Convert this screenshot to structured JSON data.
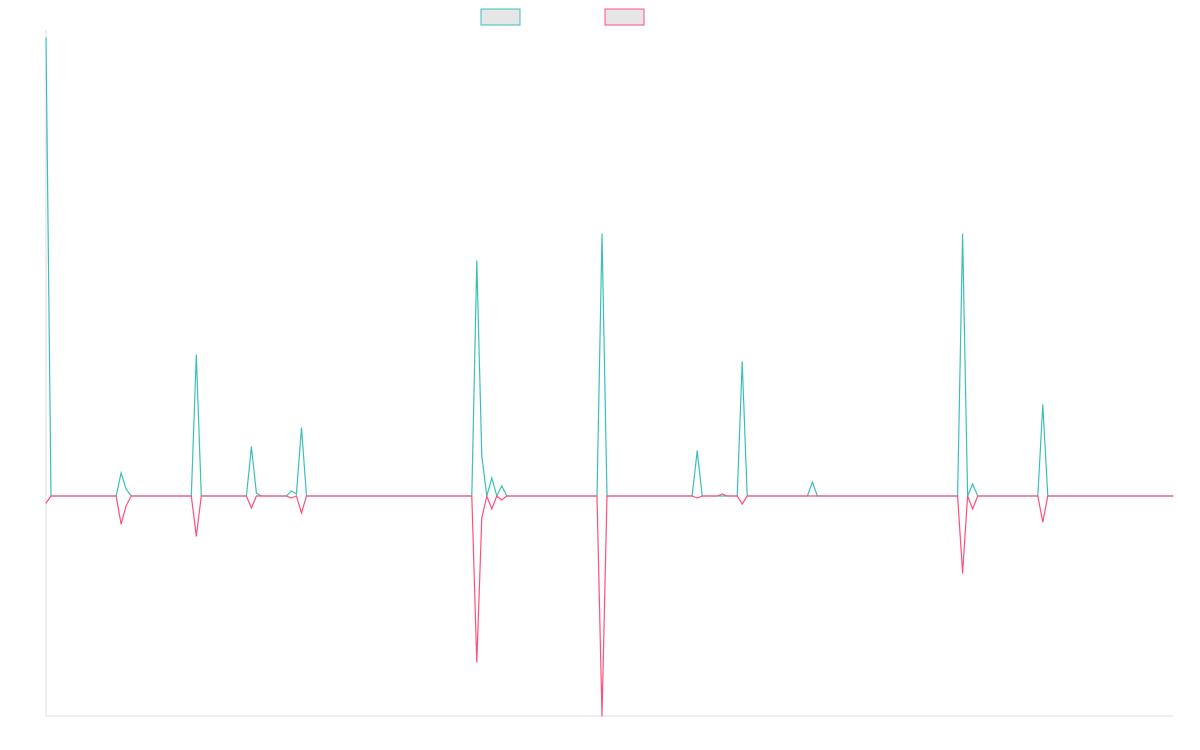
{
  "chart_data": {
    "type": "line",
    "title": "",
    "xlabel": "",
    "ylabel": "",
    "legend_position": "top-center",
    "grid": false,
    "ylim": [
      -220,
      460
    ],
    "x_range": [
      0,
      225
    ],
    "series": [
      {
        "color": "#3bbfb9",
        "fill": "#e6e6e6",
        "values": [
          [
            0,
            458
          ],
          [
            1,
            0
          ],
          [
            14,
            0
          ],
          [
            15,
            23
          ],
          [
            16,
            7
          ],
          [
            17,
            0
          ],
          [
            29,
            0
          ],
          [
            30,
            141
          ],
          [
            31,
            0
          ],
          [
            40,
            0
          ],
          [
            41,
            49
          ],
          [
            42,
            3
          ],
          [
            43,
            0
          ],
          [
            48,
            0
          ],
          [
            49,
            5
          ],
          [
            50,
            2
          ],
          [
            51,
            68
          ],
          [
            52,
            0
          ],
          [
            85,
            0
          ],
          [
            86,
            235
          ],
          [
            87,
            40
          ],
          [
            88,
            0
          ],
          [
            89,
            18
          ],
          [
            90,
            0
          ],
          [
            91,
            10
          ],
          [
            92,
            0
          ],
          [
            110,
            0
          ],
          [
            111,
            262
          ],
          [
            112,
            0
          ],
          [
            129,
            0
          ],
          [
            130,
            45
          ],
          [
            131,
            0
          ],
          [
            138,
            0
          ],
          [
            139,
            134
          ],
          [
            140,
            0
          ],
          [
            152,
            0
          ],
          [
            153,
            14
          ],
          [
            154,
            0
          ],
          [
            182,
            0
          ],
          [
            183,
            262
          ],
          [
            184,
            0
          ],
          [
            185,
            12
          ],
          [
            186,
            0
          ],
          [
            198,
            0
          ],
          [
            199,
            91
          ],
          [
            200,
            0
          ],
          [
            225,
            0
          ]
        ]
      },
      {
        "color": "#ff4f7b",
        "fill": "#e6e6e6",
        "values": [
          [
            0,
            -7
          ],
          [
            1,
            0
          ],
          [
            14,
            0
          ],
          [
            15,
            -28
          ],
          [
            16,
            -10
          ],
          [
            17,
            0
          ],
          [
            29,
            0
          ],
          [
            30,
            -40
          ],
          [
            31,
            0
          ],
          [
            40,
            0
          ],
          [
            41,
            -12
          ],
          [
            42,
            0
          ],
          [
            48,
            0
          ],
          [
            49,
            -2
          ],
          [
            50,
            0
          ],
          [
            51,
            -17
          ],
          [
            52,
            0
          ],
          [
            85,
            0
          ],
          [
            86,
            -166
          ],
          [
            87,
            -22
          ],
          [
            88,
            0
          ],
          [
            89,
            -13
          ],
          [
            90,
            0
          ],
          [
            91,
            -4
          ],
          [
            92,
            0
          ],
          [
            110,
            0
          ],
          [
            111,
            -220
          ],
          [
            112,
            0
          ],
          [
            129,
            0
          ],
          [
            130,
            -2
          ],
          [
            131,
            0
          ],
          [
            134,
            0
          ],
          [
            135,
            2
          ],
          [
            136,
            0
          ],
          [
            138,
            0
          ],
          [
            139,
            -8
          ],
          [
            140,
            0
          ],
          [
            182,
            0
          ],
          [
            183,
            -77
          ],
          [
            184,
            0
          ],
          [
            185,
            -13
          ],
          [
            186,
            0
          ],
          [
            198,
            0
          ],
          [
            199,
            -26
          ],
          [
            200,
            0
          ],
          [
            225,
            0
          ]
        ]
      }
    ]
  }
}
